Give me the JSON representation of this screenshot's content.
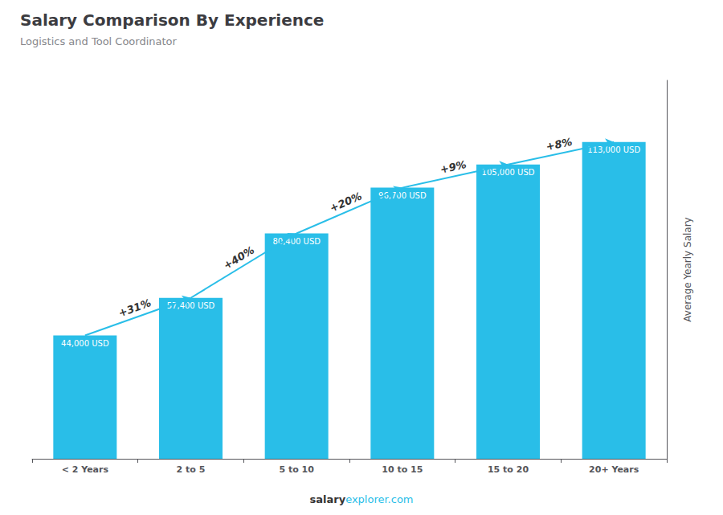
{
  "chart_data": {
    "type": "bar",
    "title": "Salary Comparison By Experience",
    "subtitle": "Logistics and Tool Coordinator",
    "y_label": "Average Yearly Salary",
    "footer": [
      "salary",
      "explorer.com"
    ],
    "categories": [
      "< 2 Years",
      "2 to 5",
      "5 to 10",
      "10 to 15",
      "15 to 20",
      "20+ Years"
    ],
    "values": [
      44000,
      57400,
      80400,
      96700,
      105000,
      113000
    ],
    "value_labels": [
      "44,000 USD",
      "57,400 USD",
      "80,400 USD",
      "96,700 USD",
      "105,000 USD",
      "113,000 USD"
    ],
    "data_labels": true,
    "change_labels": [
      "+31%",
      "+40%",
      "+20%",
      "+9%",
      "+8%"
    ],
    "color": "#29BEE8",
    "ylim": [
      0,
      135000
    ],
    "grid": false,
    "tick_labels": "x"
  }
}
